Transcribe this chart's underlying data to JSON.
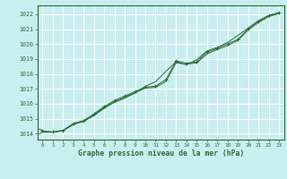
{
  "title": "Graphe pression niveau de la mer (hPa)",
  "bg_color": "#c8eef0",
  "grid_color": "#ffffff",
  "line_color": "#2d6e2d",
  "marker_color": "#2d6e2d",
  "text_color": "#2d6e2d",
  "xlim": [
    -0.5,
    23.5
  ],
  "ylim": [
    1013.6,
    1022.6
  ],
  "yticks": [
    1014,
    1015,
    1016,
    1017,
    1018,
    1019,
    1020,
    1021,
    1022
  ],
  "xticks": [
    0,
    1,
    2,
    3,
    4,
    5,
    6,
    7,
    8,
    9,
    10,
    11,
    12,
    13,
    14,
    15,
    16,
    17,
    18,
    19,
    20,
    21,
    22,
    23
  ],
  "series1": {
    "x": [
      0,
      1,
      2,
      3,
      4,
      5,
      6,
      7,
      8,
      9,
      10,
      11,
      12,
      13,
      14,
      15,
      16,
      17,
      18,
      19,
      20,
      21,
      22,
      23
    ],
    "y": [
      1014.15,
      1014.1,
      1014.2,
      1014.65,
      1014.8,
      1015.25,
      1015.75,
      1016.15,
      1016.45,
      1016.75,
      1017.05,
      1017.1,
      1017.5,
      1018.75,
      1018.65,
      1018.75,
      1019.35,
      1019.65,
      1019.9,
      1020.25,
      1020.95,
      1021.45,
      1021.85,
      1022.05
    ]
  },
  "series2": {
    "x": [
      0,
      1,
      2,
      3,
      4,
      5,
      6,
      7,
      8,
      9,
      10,
      11,
      12,
      13,
      14,
      15,
      16,
      17,
      18,
      19,
      20,
      21,
      22,
      23
    ],
    "y": [
      1014.1,
      1014.1,
      1014.2,
      1014.6,
      1014.85,
      1015.2,
      1015.7,
      1016.1,
      1016.38,
      1016.72,
      1017.18,
      1017.48,
      1018.18,
      1018.82,
      1018.62,
      1018.95,
      1019.55,
      1019.78,
      1020.12,
      1020.58,
      1021.08,
      1021.58,
      1021.92,
      1022.08
    ]
  },
  "series3": {
    "x": [
      0,
      1,
      2,
      3,
      4,
      5,
      6,
      7,
      8,
      9,
      10,
      11,
      12,
      13,
      14,
      15,
      16,
      17,
      18,
      19,
      20,
      21,
      22,
      23
    ],
    "y": [
      1014.18,
      1014.12,
      1014.22,
      1014.68,
      1014.88,
      1015.32,
      1015.82,
      1016.22,
      1016.52,
      1016.82,
      1017.12,
      1017.18,
      1017.62,
      1018.88,
      1018.72,
      1018.82,
      1019.48,
      1019.72,
      1020.02,
      1020.32,
      1021.02,
      1021.52,
      1021.92,
      1022.12
    ]
  }
}
